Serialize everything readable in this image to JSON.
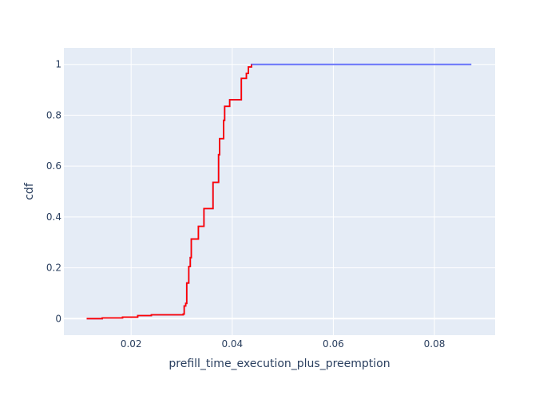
{
  "chart_data": {
    "type": "line",
    "title": "",
    "xlabel": "prefill_time_execution_plus_preemption",
    "ylabel": "cdf",
    "xlim": [
      0.0067,
      0.092
    ],
    "ylim": [
      -0.065,
      1.065
    ],
    "x_ticks": [
      0.02,
      0.04,
      0.06,
      0.08
    ],
    "x_tick_labels": [
      "0.02",
      "0.04",
      "0.06",
      "0.08"
    ],
    "y_ticks": [
      0,
      0.2,
      0.4,
      0.6,
      0.8,
      1
    ],
    "y_tick_labels": [
      "0",
      "0.2",
      "0.4",
      "0.6",
      "0.8",
      "1"
    ],
    "grid": true,
    "background": "#e5ecf6",
    "grid_color": "#ffffff",
    "series": [
      {
        "color": "#636efa",
        "points": [
          [
            0.0112,
            0.0
          ],
          [
            0.0143,
            0.003
          ],
          [
            0.0183,
            0.006
          ],
          [
            0.0213,
            0.012
          ],
          [
            0.024,
            0.015
          ],
          [
            0.0303,
            0.018
          ],
          [
            0.0305,
            0.05
          ],
          [
            0.0308,
            0.06
          ],
          [
            0.031,
            0.14
          ],
          [
            0.0314,
            0.205
          ],
          [
            0.0317,
            0.24
          ],
          [
            0.0319,
            0.313
          ],
          [
            0.0333,
            0.363
          ],
          [
            0.0344,
            0.433
          ],
          [
            0.0362,
            0.536
          ],
          [
            0.0373,
            0.645
          ],
          [
            0.0375,
            0.708
          ],
          [
            0.0383,
            0.78
          ],
          [
            0.0385,
            0.835
          ],
          [
            0.0395,
            0.861
          ],
          [
            0.0418,
            0.945
          ],
          [
            0.0428,
            0.965
          ],
          [
            0.0432,
            0.99
          ],
          [
            0.0438,
            1.0
          ],
          [
            0.0873,
            1.0
          ]
        ]
      },
      {
        "color": "#ff0000",
        "points": [
          [
            0.0112,
            0.0
          ],
          [
            0.0143,
            0.003
          ],
          [
            0.0183,
            0.006
          ],
          [
            0.0213,
            0.012
          ],
          [
            0.024,
            0.015
          ],
          [
            0.0303,
            0.018
          ],
          [
            0.0305,
            0.05
          ],
          [
            0.0308,
            0.06
          ],
          [
            0.031,
            0.14
          ],
          [
            0.0314,
            0.205
          ],
          [
            0.0317,
            0.24
          ],
          [
            0.0319,
            0.313
          ],
          [
            0.0333,
            0.363
          ],
          [
            0.0344,
            0.433
          ],
          [
            0.0362,
            0.536
          ],
          [
            0.0373,
            0.645
          ],
          [
            0.0375,
            0.708
          ],
          [
            0.0383,
            0.78
          ],
          [
            0.0385,
            0.835
          ],
          [
            0.0395,
            0.861
          ],
          [
            0.0418,
            0.945
          ],
          [
            0.0428,
            0.965
          ],
          [
            0.0432,
            0.99
          ],
          [
            0.0438,
            1.0
          ]
        ]
      }
    ]
  }
}
